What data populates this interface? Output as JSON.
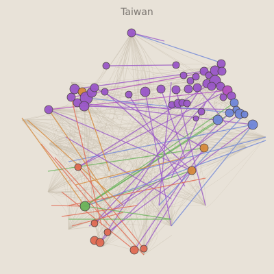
{
  "title": "Taiwan",
  "colors": {
    "background": "#e8e2d8",
    "faint_edge": "#c8bfae",
    "purple": "#9a57c8",
    "magenta": "#b44fbf",
    "blue": "#6f86d8",
    "orange": "#d68a3c",
    "red": "#e06a52",
    "green": "#69b35a",
    "node_stroke": "#4a4040"
  }
}
